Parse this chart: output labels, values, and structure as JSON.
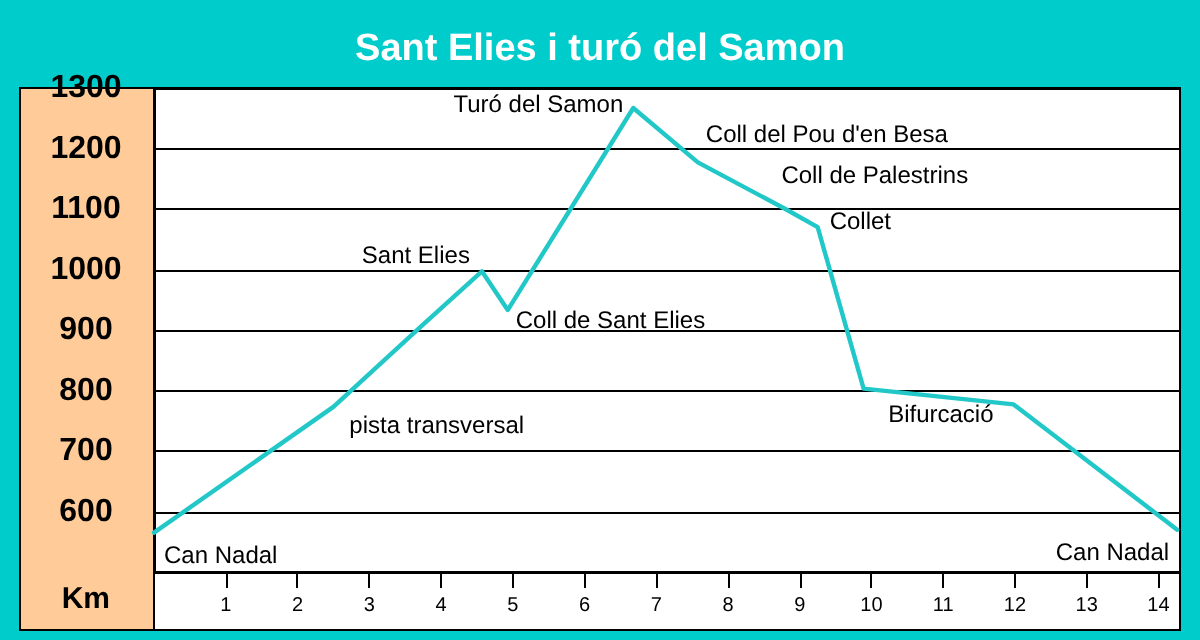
{
  "chart_data": {
    "type": "line",
    "title": "Sant Elies i turó del Samon",
    "xlabel": "Km",
    "x": [
      0,
      2.5,
      3.73,
      4.57,
      4.93,
      6.68,
      7.58,
      8.8,
      9.25,
      9.89,
      11.98,
      14.26
    ],
    "series": [
      {
        "color": "#22c8c8",
        "values": [
          565,
          773,
          907,
          997,
          933,
          1267,
          1177,
          1100,
          1070,
          803,
          777,
          570
        ]
      }
    ],
    "xlim": [
      0,
      14.3
    ],
    "xticks": [
      1,
      2,
      3,
      4,
      5,
      6,
      7,
      8,
      9,
      10,
      11,
      12,
      13,
      14
    ],
    "ylim": [
      500,
      1300
    ],
    "yticks": [
      600,
      700,
      800,
      900,
      1000,
      1100,
      1200,
      1300
    ],
    "grid": "y",
    "marker": "none",
    "line_style": "solid",
    "annotations": [
      {
        "text": "Can Nadal",
        "x": 0,
        "y": 565
      },
      {
        "text": "pista transversal",
        "x": 2.5,
        "y": 773
      },
      {
        "text": "Sant Elies",
        "x": 4.57,
        "y": 997
      },
      {
        "text": "Coll de Sant Elies",
        "x": 4.93,
        "y": 933
      },
      {
        "text": "Turó del Samon",
        "x": 6.68,
        "y": 1267
      },
      {
        "text": "Coll del Pou d'en Besa",
        "x": 7.58,
        "y": 1177
      },
      {
        "text": "Coll de Palestrins",
        "x": 8.8,
        "y": 1100
      },
      {
        "text": "Collet",
        "x": 9.25,
        "y": 1070
      },
      {
        "text": "Bifurcació",
        "x": 11.98,
        "y": 777
      },
      {
        "text": "Can Nadal",
        "x": 14.26,
        "y": 570
      }
    ]
  }
}
